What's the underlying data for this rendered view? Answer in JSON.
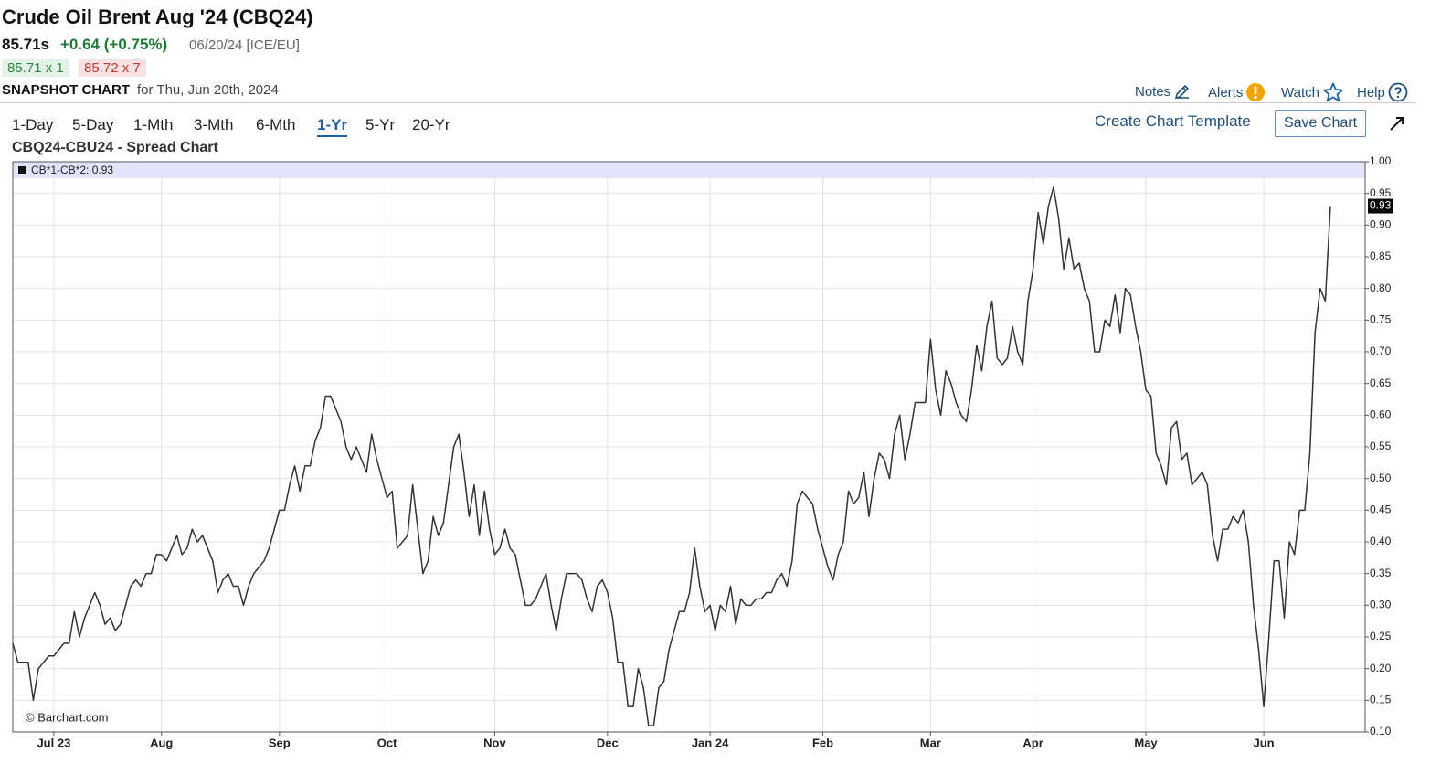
{
  "header": {
    "title": "Crude Oil Brent Aug '24 (CBQ24)",
    "price": "85.71s",
    "change": "+0.64 (+0.75%)",
    "date": "06/20/24 [ICE/EU]",
    "bid": "85.71 x 1",
    "ask": "85.72 x 7",
    "snapshot": "SNAPSHOT CHART",
    "snapshot_date": "for Thu, Jun 20th, 2024"
  },
  "links": [
    "Notes",
    "Alerts",
    "Watch",
    "Help"
  ],
  "periods": [
    "1-Day",
    "5-Day",
    "1-Mth",
    "3-Mth",
    "6-Mth",
    "1-Yr",
    "5-Yr",
    "20-Yr"
  ],
  "active_period": 5,
  "create_template": "Create Chart Template",
  "save_chart": "Save Chart",
  "chart_data": {
    "type": "line",
    "title": "CBQ24-CBU24 - Spread Chart",
    "watermark": "© Barchart.com",
    "categories": [
      null,
      null,
      null,
      null,
      null,
      null,
      null,
      null,
      "Jul 23",
      null,
      null,
      null,
      null,
      null,
      null,
      null,
      null,
      null,
      null,
      null,
      null,
      null,
      null,
      null,
      null,
      null,
      null,
      null,
      null,
      "Aug",
      null,
      null,
      null,
      null,
      null,
      null,
      null,
      null,
      null,
      null,
      null,
      null,
      null,
      null,
      null,
      null,
      null,
      null,
      null,
      null,
      null,
      null,
      "Sep",
      null,
      null,
      null,
      null,
      null,
      null,
      null,
      null,
      null,
      null,
      null,
      null,
      null,
      null,
      null,
      null,
      null,
      null,
      null,
      null,
      "Oct",
      null,
      null,
      null,
      null,
      null,
      null,
      null,
      null,
      null,
      null,
      null,
      null,
      null,
      null,
      null,
      null,
      null,
      null,
      null,
      null,
      "Nov",
      null,
      null,
      null,
      null,
      null,
      null,
      null,
      null,
      null,
      null,
      null,
      null,
      null,
      null,
      null,
      null,
      null,
      null,
      null,
      null,
      null,
      "Dec",
      null,
      null,
      null,
      null,
      null,
      null,
      null,
      null,
      null,
      null,
      null,
      null,
      null,
      null,
      null,
      null,
      null,
      null,
      null,
      "Jan 24",
      null,
      null,
      null,
      null,
      null,
      null,
      null,
      null,
      null,
      null,
      null,
      null,
      null,
      null,
      null,
      null,
      null,
      null,
      null,
      null,
      null,
      "Feb",
      null,
      null,
      null,
      null,
      null,
      null,
      null,
      null,
      null,
      null,
      null,
      null,
      null,
      null,
      null,
      null,
      null,
      null,
      null,
      null,
      "Mar",
      null,
      null,
      null,
      null,
      null,
      null,
      null,
      null,
      null,
      null,
      null,
      null,
      null,
      null,
      null,
      null,
      null,
      null,
      null,
      "Apr",
      null,
      null,
      null,
      null,
      null,
      null,
      null,
      null,
      null,
      null,
      null,
      null,
      null,
      null,
      null,
      null,
      null,
      null,
      null,
      null,
      null,
      "May",
      null,
      null,
      null,
      null,
      null,
      null,
      null,
      null,
      null,
      null,
      null,
      null,
      null,
      null,
      null,
      null,
      null,
      null,
      null,
      null,
      null,
      null,
      "Jun",
      null,
      null,
      null,
      null,
      null,
      null,
      null,
      null,
      null,
      null,
      null,
      null,
      null
    ],
    "series": [
      {
        "name": "CB*1-CB*2: 0.93",
        "color": "#333333",
        "values": [
          0.24,
          0.21,
          0.21,
          0.21,
          0.15,
          0.2,
          0.21,
          0.22,
          0.22,
          0.23,
          0.24,
          0.24,
          0.29,
          0.25,
          0.28,
          0.3,
          0.32,
          0.3,
          0.27,
          0.28,
          0.26,
          0.27,
          0.3,
          0.33,
          0.34,
          0.33,
          0.35,
          0.35,
          0.38,
          0.38,
          0.37,
          0.39,
          0.41,
          0.38,
          0.39,
          0.42,
          0.4,
          0.41,
          0.39,
          0.37,
          0.32,
          0.34,
          0.35,
          0.33,
          0.33,
          0.3,
          0.33,
          0.35,
          0.36,
          0.37,
          0.39,
          0.42,
          0.45,
          0.45,
          0.49,
          0.52,
          0.48,
          0.52,
          0.52,
          0.56,
          0.58,
          0.63,
          0.63,
          0.61,
          0.59,
          0.55,
          0.53,
          0.55,
          0.53,
          0.51,
          0.57,
          0.53,
          0.5,
          0.47,
          0.48,
          0.39,
          0.4,
          0.41,
          0.49,
          0.42,
          0.35,
          0.37,
          0.44,
          0.41,
          0.43,
          0.49,
          0.55,
          0.57,
          0.51,
          0.44,
          0.49,
          0.41,
          0.48,
          0.42,
          0.38,
          0.39,
          0.42,
          0.39,
          0.38,
          0.34,
          0.3,
          0.3,
          0.31,
          0.33,
          0.35,
          0.3,
          0.26,
          0.31,
          0.35,
          0.35,
          0.35,
          0.34,
          0.31,
          0.29,
          0.33,
          0.34,
          0.32,
          0.28,
          0.21,
          0.21,
          0.14,
          0.14,
          0.2,
          0.17,
          0.11,
          0.11,
          0.17,
          0.18,
          0.23,
          0.26,
          0.29,
          0.29,
          0.32,
          0.39,
          0.33,
          0.29,
          0.3,
          0.26,
          0.3,
          0.29,
          0.33,
          0.27,
          0.31,
          0.3,
          0.3,
          0.31,
          0.31,
          0.32,
          0.32,
          0.34,
          0.35,
          0.33,
          0.37,
          0.46,
          0.48,
          0.47,
          0.46,
          0.42,
          0.39,
          0.36,
          0.34,
          0.38,
          0.4,
          0.48,
          0.46,
          0.47,
          0.51,
          0.44,
          0.5,
          0.54,
          0.53,
          0.5,
          0.57,
          0.6,
          0.53,
          0.57,
          0.62,
          0.62,
          0.62,
          0.72,
          0.64,
          0.6,
          0.67,
          0.65,
          0.62,
          0.6,
          0.59,
          0.64,
          0.71,
          0.67,
          0.74,
          0.78,
          0.69,
          0.68,
          0.69,
          0.74,
          0.7,
          0.68,
          0.78,
          0.83,
          0.92,
          0.87,
          0.93,
          0.96,
          0.91,
          0.83,
          0.88,
          0.83,
          0.84,
          0.8,
          0.78,
          0.7,
          0.7,
          0.75,
          0.74,
          0.79,
          0.73,
          0.8,
          0.79,
          0.74,
          0.7,
          0.64,
          0.63,
          0.54,
          0.52,
          0.49,
          0.58,
          0.59,
          0.53,
          0.54,
          0.49,
          0.5,
          0.51,
          0.49,
          0.41,
          0.37,
          0.42,
          0.42,
          0.44,
          0.43,
          0.45,
          0.4,
          0.3,
          0.23,
          0.14,
          0.25,
          0.37,
          0.37,
          0.28,
          0.4,
          0.38,
          0.45,
          0.45,
          0.54,
          0.73,
          0.8,
          0.78,
          0.93
        ]
      }
    ],
    "ylim": [
      0.1,
      1.0
    ],
    "yticks": [
      {
        "value": 0.1,
        "label": "0.10"
      },
      {
        "value": 0.15,
        "label": "0.15"
      },
      {
        "value": 0.2,
        "label": "0.20"
      },
      {
        "value": 0.25,
        "label": "0.25"
      },
      {
        "value": 0.3,
        "label": "0.30"
      },
      {
        "value": 0.35,
        "label": "0.35"
      },
      {
        "value": 0.4,
        "label": "0.40"
      },
      {
        "value": 0.45,
        "label": "0.45"
      },
      {
        "value": 0.5,
        "label": "0.50"
      },
      {
        "value": 0.55,
        "label": "0.55"
      },
      {
        "value": 0.6,
        "label": "0.60"
      },
      {
        "value": 0.65,
        "label": "0.65"
      },
      {
        "value": 0.7,
        "label": "0.70"
      },
      {
        "value": 0.75,
        "label": "0.75"
      },
      {
        "value": 0.8,
        "label": "0.80"
      },
      {
        "value": 0.85,
        "label": "0.85"
      },
      {
        "value": 0.9,
        "label": "0.90"
      },
      {
        "value": 0.95,
        "label": "0.95"
      },
      {
        "value": 1.0,
        "label": "1.00"
      }
    ],
    "grid": true,
    "last_value_marker": true
  }
}
